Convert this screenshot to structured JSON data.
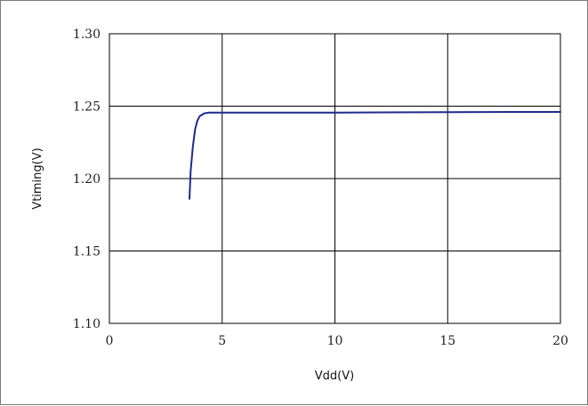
{
  "chart_data": {
    "type": "line",
    "title": "",
    "xlabel": "Vdd(V)",
    "ylabel": "Vtiming(V)",
    "xlim": [
      0,
      20
    ],
    "ylim": [
      1.1,
      1.3
    ],
    "x_ticks": [
      "0",
      "5",
      "10",
      "15",
      "20"
    ],
    "y_ticks": [
      "1.10",
      "1.15",
      "1.20",
      "1.25",
      "1.30"
    ],
    "grid": true,
    "legend": "none",
    "series": [
      {
        "color": "#1f2a8c",
        "x": [
          3.55,
          3.6,
          3.7,
          3.8,
          3.9,
          4.0,
          4.2,
          4.4,
          4.6,
          4.8,
          5.0,
          6.0,
          8.0,
          10.0,
          12.0,
          15.0,
          18.0,
          20.0
        ],
        "y": [
          1.186,
          1.205,
          1.222,
          1.234,
          1.24,
          1.243,
          1.245,
          1.2455,
          1.2455,
          1.2455,
          1.2455,
          1.2455,
          1.2455,
          1.2455,
          1.2457,
          1.2458,
          1.246,
          1.246
        ]
      }
    ]
  }
}
